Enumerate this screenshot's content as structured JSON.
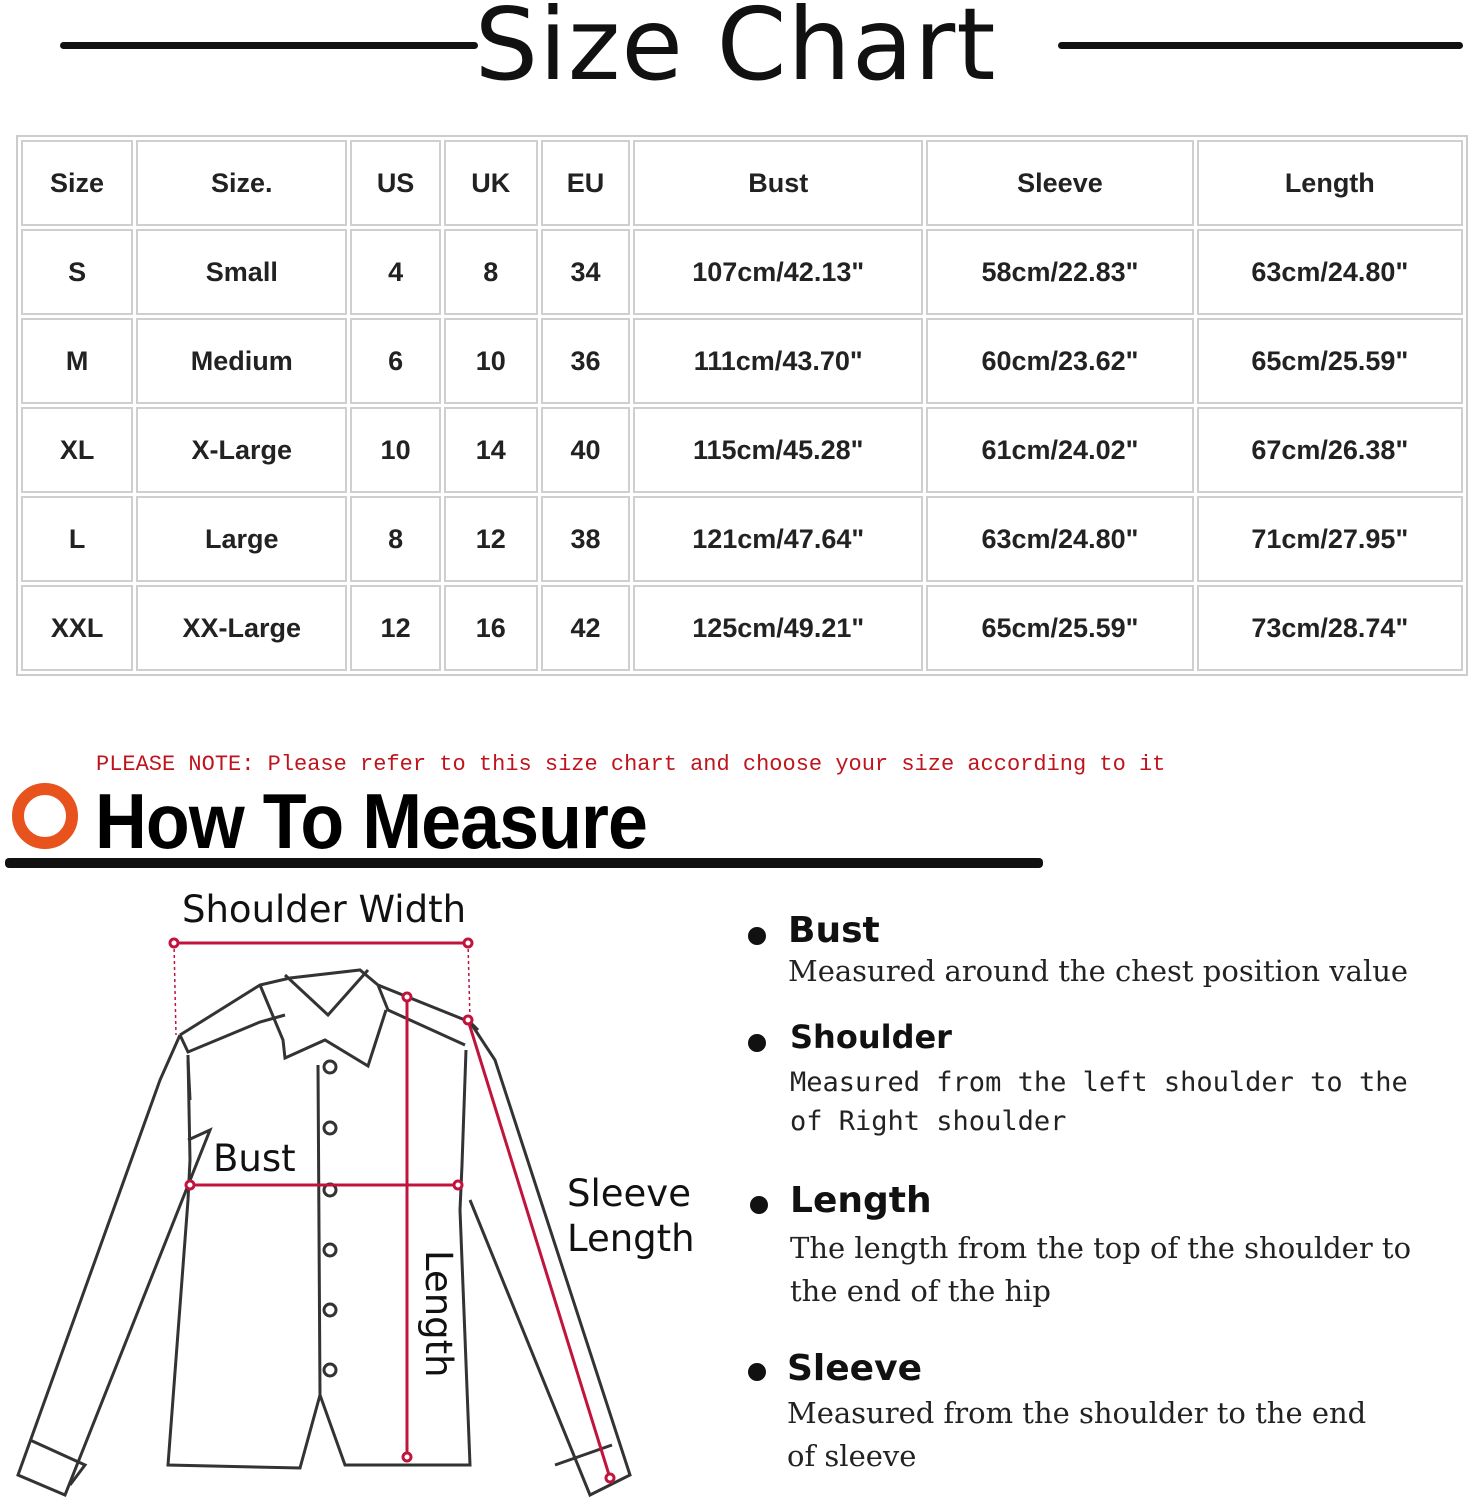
{
  "title": "Size Chart",
  "table": {
    "headers": [
      "Size",
      "Size.",
      "US",
      "UK",
      "EU",
      "Bust",
      "Sleeve",
      "Length"
    ],
    "rows": [
      [
        "S",
        "Small",
        "4",
        "8",
        "34",
        "107cm/42.13\"",
        "58cm/22.83\"",
        "63cm/24.80\""
      ],
      [
        "M",
        "Medium",
        "6",
        "10",
        "36",
        "111cm/43.70\"",
        "60cm/23.62\"",
        "65cm/25.59\""
      ],
      [
        "XL",
        "X-Large",
        "10",
        "14",
        "40",
        "115cm/45.28\"",
        "61cm/24.02\"",
        "67cm/26.38\""
      ],
      [
        "L",
        "Large",
        "8",
        "12",
        "38",
        "121cm/47.64\"",
        "63cm/24.80\"",
        "71cm/27.95\""
      ],
      [
        "XXL",
        "XX-Large",
        "12",
        "16",
        "42",
        "125cm/49.21\"",
        "65cm/25.59\"",
        "73cm/28.74\""
      ]
    ]
  },
  "note": "PLEASE NOTE: Please refer to this size chart and choose your size according to it",
  "measure_title": "How To Measure",
  "accent_color": "#e8521c",
  "line_color": "#c0143c",
  "diagram": {
    "shoulder": "Shoulder Width",
    "bust": "Bust",
    "length": "Length",
    "sleeve1": "Sleeve",
    "sleeve2": "Length"
  },
  "guide": [
    {
      "heading": "Bust",
      "text": "Measured around the chest position value"
    },
    {
      "heading": "Shoulder",
      "text1": "Measured from the left shoulder to the",
      "text2": "of Right shoulder"
    },
    {
      "heading": "Length",
      "text1": "The length from the top of the shoulder to",
      "text2": "the end of the hip"
    },
    {
      "heading": "Sleeve",
      "text1": "Measured from the shoulder to the end",
      "text2": "of sleeve"
    }
  ]
}
